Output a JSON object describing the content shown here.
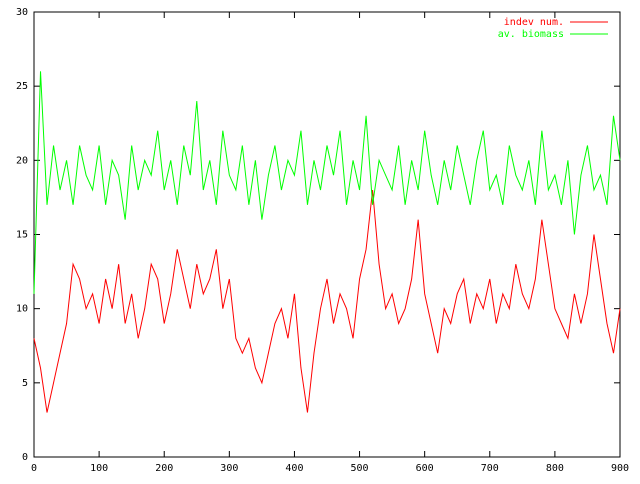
{
  "chart_data": {
    "type": "line",
    "x": [
      0,
      10,
      20,
      30,
      40,
      50,
      60,
      70,
      80,
      90,
      100,
      110,
      120,
      130,
      140,
      150,
      160,
      170,
      180,
      190,
      200,
      210,
      220,
      230,
      240,
      250,
      260,
      270,
      280,
      290,
      300,
      310,
      320,
      330,
      340,
      350,
      360,
      370,
      380,
      390,
      400,
      410,
      420,
      430,
      440,
      450,
      460,
      470,
      480,
      490,
      500,
      510,
      520,
      530,
      540,
      550,
      560,
      570,
      580,
      590,
      600,
      610,
      620,
      630,
      640,
      650,
      660,
      670,
      680,
      690,
      700,
      710,
      720,
      730,
      740,
      750,
      760,
      770,
      780,
      790,
      800,
      810,
      820,
      830,
      840,
      850,
      860,
      870,
      880,
      890,
      900
    ],
    "series": [
      {
        "name": "indev num.",
        "color": "#ff0000",
        "values": [
          8,
          6,
          3,
          5,
          7,
          9,
          13,
          12,
          10,
          11,
          9,
          12,
          10,
          13,
          9,
          11,
          8,
          10,
          13,
          12,
          9,
          11,
          14,
          12,
          10,
          13,
          11,
          12,
          14,
          10,
          12,
          8,
          7,
          8,
          6,
          5,
          7,
          9,
          10,
          8,
          11,
          6,
          3,
          7,
          10,
          12,
          9,
          11,
          10,
          8,
          12,
          14,
          18,
          13,
          10,
          11,
          9,
          10,
          12,
          16,
          11,
          9,
          7,
          10,
          9,
          11,
          12,
          9,
          11,
          10,
          12,
          9,
          11,
          10,
          13,
          11,
          10,
          12,
          16,
          13,
          10,
          9,
          8,
          11,
          9,
          11,
          15,
          12,
          9,
          7,
          10
        ]
      },
      {
        "name": "av. biomass",
        "color": "#00ff00",
        "values": [
          11,
          26,
          17,
          21,
          18,
          20,
          17,
          21,
          19,
          18,
          21,
          17,
          20,
          19,
          16,
          21,
          18,
          20,
          19,
          22,
          18,
          20,
          17,
          21,
          19,
          24,
          18,
          20,
          17,
          22,
          19,
          18,
          21,
          17,
          20,
          16,
          19,
          21,
          18,
          20,
          19,
          22,
          17,
          20,
          18,
          21,
          19,
          22,
          17,
          20,
          18,
          23,
          17,
          20,
          19,
          18,
          21,
          17,
          20,
          18,
          22,
          19,
          17,
          20,
          18,
          21,
          19,
          17,
          20,
          22,
          18,
          19,
          17,
          21,
          19,
          18,
          20,
          17,
          22,
          18,
          19,
          17,
          20,
          15,
          19,
          21,
          18,
          19,
          17,
          23,
          20
        ]
      }
    ],
    "xlim": [
      0,
      900
    ],
    "xticks": [
      0,
      100,
      200,
      300,
      400,
      500,
      600,
      700,
      800,
      900
    ],
    "ylim": [
      0,
      30
    ],
    "yticks": [
      0,
      5,
      10,
      15,
      20,
      25,
      30
    ],
    "grid": false,
    "legend": "top-right"
  }
}
